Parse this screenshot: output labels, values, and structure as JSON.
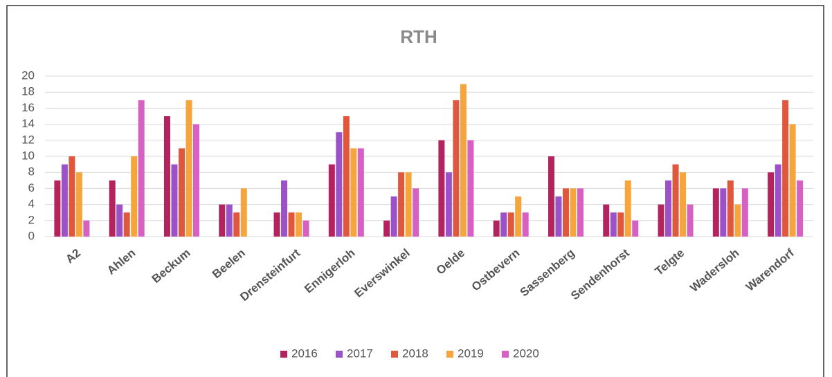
{
  "chart_data": {
    "type": "bar",
    "title": "RTH",
    "categories": [
      "A2",
      "Ahlen",
      "Beckum",
      "Beelen",
      "Drensteinfurt",
      "Ennigerloh",
      "Everswinkel",
      "Oelde",
      "Ostbevern",
      "Sassenberg",
      "Sendenhorst",
      "Telgte",
      "Wadersloh",
      "Warendorf"
    ],
    "series": [
      {
        "name": "2016",
        "color": "#b3245e",
        "values": [
          7,
          7,
          15,
          4,
          3,
          9,
          2,
          12,
          2,
          10,
          4,
          4,
          6,
          8
        ]
      },
      {
        "name": "2017",
        "color": "#9a52c6",
        "values": [
          9,
          4,
          9,
          4,
          7,
          13,
          5,
          8,
          3,
          5,
          3,
          7,
          6,
          9
        ]
      },
      {
        "name": "2018",
        "color": "#df573d",
        "values": [
          10,
          3,
          11,
          3,
          3,
          15,
          8,
          17,
          3,
          6,
          3,
          9,
          7,
          17
        ]
      },
      {
        "name": "2019",
        "color": "#f6a53c",
        "values": [
          8,
          10,
          17,
          6,
          3,
          11,
          8,
          19,
          5,
          6,
          7,
          8,
          4,
          14
        ]
      },
      {
        "name": "2020",
        "color": "#d661c2",
        "values": [
          2,
          17,
          14,
          0,
          2,
          11,
          6,
          12,
          3,
          6,
          2,
          4,
          6,
          7
        ]
      }
    ],
    "ylim": [
      0,
      20
    ],
    "yticks": [
      0,
      2,
      4,
      6,
      8,
      10,
      12,
      14,
      16,
      18,
      20
    ],
    "grid": true,
    "legend": "bottom"
  }
}
